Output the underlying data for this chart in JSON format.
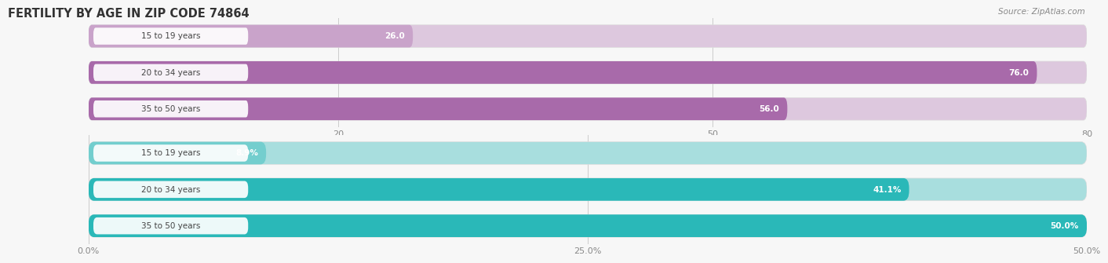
{
  "title": "FERTILITY BY AGE IN ZIP CODE 74864",
  "source": "Source: ZipAtlas.com",
  "top_chart": {
    "categories": [
      "15 to 19 years",
      "20 to 34 years",
      "35 to 50 years"
    ],
    "values": [
      26.0,
      76.0,
      56.0
    ],
    "colors": [
      "#c9a3ca",
      "#a86aaa",
      "#a86aaa"
    ],
    "bar_bg_color": "#ddc8de",
    "xlim": [
      0,
      80
    ],
    "xticks": [
      20.0,
      50.0,
      80.0
    ],
    "value_labels": [
      "26.0",
      "76.0",
      "56.0"
    ]
  },
  "bottom_chart": {
    "categories": [
      "15 to 19 years",
      "20 to 34 years",
      "35 to 50 years"
    ],
    "values": [
      8.9,
      41.1,
      50.0
    ],
    "colors": [
      "#73cece",
      "#2ab8b8",
      "#2ab8b8"
    ],
    "bar_bg_color": "#a8dede",
    "xlim": [
      0,
      50
    ],
    "xticks": [
      0.0,
      25.0,
      50.0
    ],
    "xtick_labels": [
      "0.0%",
      "25.0%",
      "50.0%"
    ],
    "value_labels": [
      "8.9%",
      "41.1%",
      "50.0%"
    ]
  },
  "fig_bg": "#f7f7f7",
  "title_color": "#333333",
  "bar_height": 0.62,
  "label_box_color": "#ffffff",
  "label_text_color": "#444444",
  "value_text_color": "#ffffff",
  "grid_color": "#cccccc",
  "tick_color": "#888888"
}
